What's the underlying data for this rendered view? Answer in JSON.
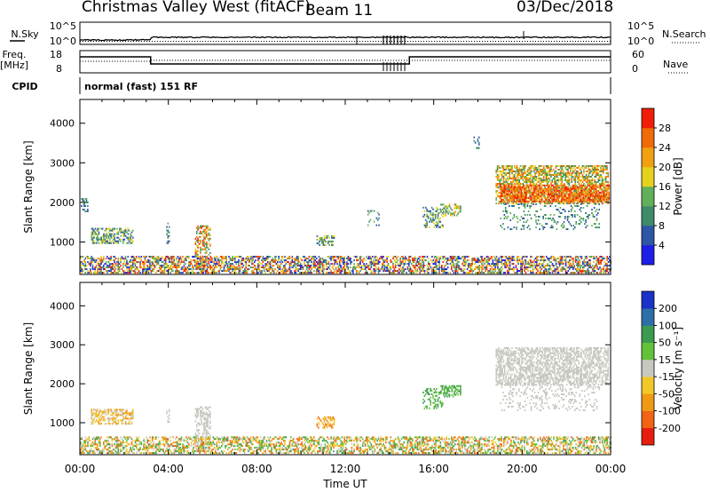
{
  "header": {
    "title": "Christmas Valley West (fitACF)",
    "beam": "Beam 11",
    "date": "03/Dec/2018"
  },
  "noise_panel": {
    "left_label": "N.Sky",
    "left_top_tick": "10^5",
    "left_bottom_tick": "10^0",
    "right_label": "N.Search",
    "right_top_tick": "10^5",
    "right_bottom_tick": "10^0"
  },
  "freq_panel": {
    "left_label_line1": "Freq.",
    "left_label_line2": "[MHz]",
    "left_top_tick": "18",
    "left_bottom_tick": "8",
    "right_label": "Nave",
    "right_top_tick": "60",
    "right_bottom_tick": "0"
  },
  "cpid": {
    "label": "CPID",
    "text": "normal (fast) 151 RF"
  },
  "chart_data": {
    "type": "heatmap",
    "x_tick_labels": [
      "00:00",
      "04:00",
      "08:00",
      "12:00",
      "16:00",
      "20:00",
      "00:00"
    ],
    "x_range_hours": [
      0,
      24
    ],
    "xlabel": "Time UT",
    "y_range_km": [
      180,
      4600
    ],
    "y_ticks_km": [
      1000,
      2000,
      3000,
      4000
    ],
    "panels": [
      {
        "ylabel": "Slant Range [km]",
        "colorbar_label": "Power [dB]",
        "colorbar_ticks": [
          "4",
          "8",
          "12",
          "16",
          "20",
          "24",
          "28"
        ],
        "colorbar_colors": [
          "#1e1ee6",
          "#2e55a8",
          "#3f8a6a",
          "#62b05a",
          "#e6d21e",
          "#f0a010",
          "#f06a08",
          "#f01e06"
        ],
        "scatter_regions": [
          {
            "t": [
              0.5,
              2.4
            ],
            "r": [
              950,
              1350
            ],
            "level": [
              1,
              4
            ],
            "density": 0.55
          },
          {
            "t": [
              0.05,
              0.35
            ],
            "r": [
              1750,
              2100
            ],
            "level": [
              1,
              3
            ],
            "density": 0.4
          },
          {
            "t": [
              3.9,
              4.05
            ],
            "r": [
              950,
              1450
            ],
            "level": [
              1,
              3
            ],
            "density": 0.4
          },
          {
            "t": [
              5.2,
              5.9
            ],
            "r": [
              250,
              1400
            ],
            "level": [
              2,
              7
            ],
            "density": 0.55
          },
          {
            "t": [
              10.7,
              11.5
            ],
            "r": [
              900,
              1150
            ],
            "level": [
              1,
              4
            ],
            "density": 0.55
          },
          {
            "t": [
              13.0,
              13.6
            ],
            "r": [
              1400,
              1800
            ],
            "level": [
              1,
              3
            ],
            "density": 0.15
          },
          {
            "t": [
              15.5,
              16.4
            ],
            "r": [
              1350,
              1850
            ],
            "level": [
              1,
              4
            ],
            "density": 0.35
          },
          {
            "t": [
              16.3,
              17.2
            ],
            "r": [
              1650,
              1950
            ],
            "level": [
              2,
              5
            ],
            "density": 0.55
          },
          {
            "t": [
              17.8,
              18.05
            ],
            "r": [
              3350,
              3650
            ],
            "level": [
              1,
              3
            ],
            "density": 0.3
          },
          {
            "t": [
              0.0,
              24.0
            ],
            "r": [
              200,
              620
            ],
            "level": [
              0,
              7
            ],
            "density": 0.55
          },
          {
            "t": [
              18.8,
              23.9
            ],
            "r": [
              1950,
              2900
            ],
            "level": [
              2,
              6
            ],
            "density": 0.6
          },
          {
            "t": [
              19.0,
              23.9
            ],
            "r": [
              2000,
              2450
            ],
            "level": [
              5,
              7
            ],
            "density": 0.65
          },
          {
            "t": [
              19.0,
              23.5
            ],
            "r": [
              1300,
              1950
            ],
            "level": [
              1,
              3
            ],
            "density": 0.18
          }
        ]
      },
      {
        "ylabel": "Slant Range [km]",
        "colorbar_label": "Velocity [m s⁻¹]",
        "colorbar_ticks": [
          "200",
          "100",
          "50",
          "15",
          "-15",
          "-50",
          "-100",
          "-200"
        ],
        "colorbar_colors": [
          "#1a32c8",
          "#2e6ea6",
          "#3a9a50",
          "#62c23a",
          "#c8c8c0",
          "#f0c828",
          "#f09a14",
          "#f06414",
          "#e61e0e"
        ],
        "scatter_regions": [
          {
            "t": [
              0.5,
              2.4
            ],
            "r": [
              950,
              1350
            ],
            "level": [
              4,
              6
            ],
            "density": 0.55
          },
          {
            "t": [
              3.9,
              4.05
            ],
            "r": [
              950,
              1350
            ],
            "level": [
              4,
              4
            ],
            "density": 0.4
          },
          {
            "t": [
              5.2,
              5.9
            ],
            "r": [
              250,
              1400
            ],
            "level": [
              4,
              4
            ],
            "density": 0.55
          },
          {
            "t": [
              10.7,
              11.5
            ],
            "r": [
              850,
              1150
            ],
            "level": [
              5,
              7
            ],
            "density": 0.55
          },
          {
            "t": [
              15.5,
              16.4
            ],
            "r": [
              1350,
              1850
            ],
            "level": [
              2,
              3
            ],
            "density": 0.35
          },
          {
            "t": [
              16.3,
              17.2
            ],
            "r": [
              1650,
              1950
            ],
            "level": [
              2,
              3
            ],
            "density": 0.55
          },
          {
            "t": [
              0.0,
              24.0
            ],
            "r": [
              200,
              620
            ],
            "level": [
              2,
              7
            ],
            "density": 0.5
          },
          {
            "t": [
              18.8,
              23.9
            ],
            "r": [
              1950,
              2900
            ],
            "level": [
              4,
              4
            ],
            "density": 0.6
          },
          {
            "t": [
              19.0,
              23.5
            ],
            "r": [
              1300,
              1950
            ],
            "level": [
              4,
              4
            ],
            "density": 0.18
          }
        ]
      }
    ]
  }
}
